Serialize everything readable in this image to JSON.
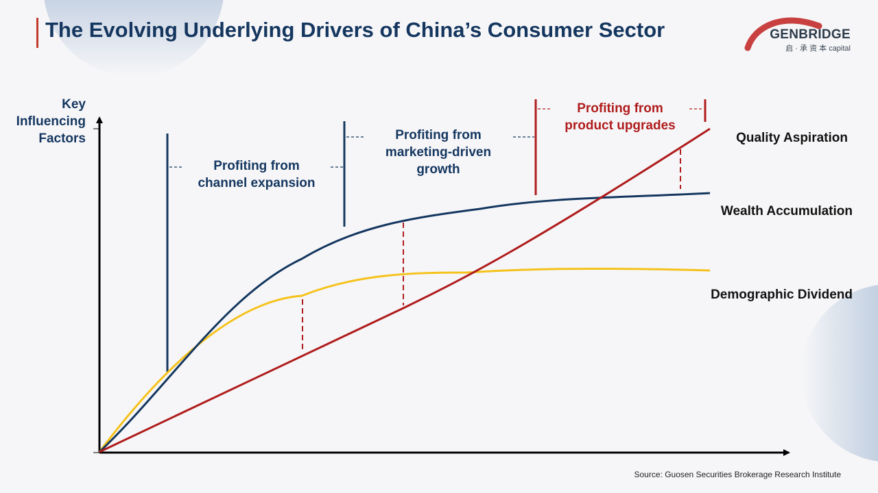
{
  "header": {
    "title": "The Evolving Underlying Drivers of China’s Consumer Sector"
  },
  "logo": {
    "name": "GENBRIDGE",
    "subtitle": "启 · 承 资 本 capital"
  },
  "diagram": {
    "y_axis_label": "Key\nInfluencing\nFactors",
    "phases": [
      {
        "label": "Profiting from\nchannel expansion",
        "color": "#14365f"
      },
      {
        "label": "Profiting from\nmarketing-driven\ngrowth",
        "color": "#14365f"
      },
      {
        "label": "Profiting from\nproduct upgrades",
        "color": "#b01c1c"
      }
    ],
    "series": [
      {
        "name": "Quality Aspiration",
        "color": "#b01c1c"
      },
      {
        "name": "Wealth Accumulation",
        "color": "#14365f"
      },
      {
        "name": "Demographic Dividend",
        "color": "#f5c21b"
      }
    ]
  },
  "footer": {
    "source": "Source: Guosen Securities Brokerage Research Institute"
  },
  "colors": {
    "navy": "#14365f",
    "red": "#b01c1c",
    "yellow": "#f5c21b",
    "background": "#f6f6f8"
  }
}
